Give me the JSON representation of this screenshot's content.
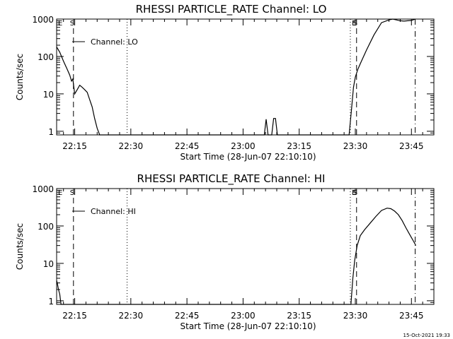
{
  "chart_data": [
    {
      "type": "line",
      "title": "RHESSI PARTICLE_RATE Channel: LO",
      "xlabel": "Start Time (28-Jun-07 22:10:10)",
      "ylabel": "Counts/sec",
      "yscale": "log",
      "xlim": [
        "22:10:10",
        "23:51:00"
      ],
      "ylim": [
        0.8,
        1000
      ],
      "xticks": [
        "22:15",
        "22:30",
        "22:45",
        "23:00",
        "23:15",
        "23:30",
        "23:45"
      ],
      "yticks": [
        "1",
        "10",
        "100",
        "1000"
      ],
      "legend": {
        "label": "Channel: LO",
        "position": "top-left"
      },
      "markers": [
        {
          "label": "E",
          "time": "22:10:10",
          "style": "solid"
        },
        {
          "label": "S",
          "time": "22:14:40",
          "style": "dashed"
        },
        {
          "label": "",
          "time": "22:29:00",
          "style": "dotted"
        },
        {
          "label": "E",
          "time": "23:28:40",
          "style": "dotted"
        },
        {
          "label": "S",
          "time": "23:30:20",
          "style": "dashed"
        },
        {
          "label": "",
          "time": "23:46:00",
          "style": "dashdot"
        }
      ],
      "series": [
        {
          "name": "Channel: LO",
          "x": [
            "22:10:10",
            "22:11:00",
            "22:12:00",
            "22:13:00",
            "22:13:40",
            "22:14:10",
            "22:14:30",
            "22:15:00",
            "22:15:40",
            "22:16:20",
            "22:17:00",
            "22:17:40",
            "22:18:20",
            "22:19:00",
            "22:19:40",
            "22:20:20",
            "22:21:00",
            "22:21:40",
            "23:05:40",
            "23:06:10",
            "23:06:40",
            "23:07:40",
            "23:08:10",
            "23:08:40",
            "23:09:10",
            "23:28:20",
            "23:29:00",
            "23:29:30",
            "23:30:00",
            "23:30:40",
            "23:31:30",
            "23:33:00",
            "23:35:00",
            "23:37:00",
            "23:39:00",
            "23:40:00",
            "23:41:00",
            "23:42:00",
            "23:43:00",
            "23:44:00",
            "23:45:00",
            "23:46:00"
          ],
          "y": [
            180,
            130,
            75,
            45,
            32,
            22,
            25,
            10,
            13,
            17,
            15,
            13,
            11,
            7,
            4.5,
            2.2,
            1.2,
            0.8,
            0.8,
            2.1,
            0.8,
            0.8,
            2.2,
            2.2,
            0.8,
            0.8,
            4,
            15,
            28,
            45,
            70,
            150,
            380,
            800,
            950,
            1000,
            950,
            900,
            880,
            900,
            920,
            1000
          ]
        }
      ]
    },
    {
      "type": "line",
      "title": "RHESSI PARTICLE_RATE Channel: HI",
      "xlabel": "Start Time (28-Jun-07 22:10:10)",
      "ylabel": "Counts/sec",
      "yscale": "log",
      "xlim": [
        "22:10:10",
        "23:51:00"
      ],
      "ylim": [
        0.8,
        1000
      ],
      "xticks": [
        "22:15",
        "22:30",
        "22:45",
        "23:00",
        "23:15",
        "23:30",
        "23:45"
      ],
      "yticks": [
        "1",
        "10",
        "100",
        "1000"
      ],
      "legend": {
        "label": "Channel: HI",
        "position": "top-left"
      },
      "markers": [
        {
          "label": "E",
          "time": "22:10:10",
          "style": "solid"
        },
        {
          "label": "S",
          "time": "22:14:40",
          "style": "dashed"
        },
        {
          "label": "",
          "time": "22:29:00",
          "style": "dotted"
        },
        {
          "label": "E",
          "time": "23:28:40",
          "style": "dotted"
        },
        {
          "label": "S",
          "time": "23:30:20",
          "style": "dashed"
        },
        {
          "label": "",
          "time": "23:46:00",
          "style": "dashdot"
        }
      ],
      "series": [
        {
          "name": "Channel: HI",
          "x": [
            "22:10:10",
            "22:10:20",
            "22:10:40",
            "22:11:00",
            "22:11:20",
            "23:28:50",
            "23:29:20",
            "23:29:50",
            "23:30:30",
            "23:31:20",
            "23:32:30",
            "23:34:00",
            "23:35:30",
            "23:37:00",
            "23:38:30",
            "23:39:30",
            "23:40:30",
            "23:41:30",
            "23:42:30",
            "23:43:30",
            "23:44:30",
            "23:45:30",
            "23:46:10"
          ],
          "y": [
            3.5,
            3,
            2,
            1.5,
            0.8,
            0.8,
            4,
            12,
            30,
            55,
            80,
            120,
            180,
            260,
            300,
            290,
            250,
            200,
            140,
            90,
            60,
            40,
            30
          ]
        }
      ]
    }
  ],
  "footer": {
    "date_stamp": "15-Oct-2021 19:33"
  }
}
